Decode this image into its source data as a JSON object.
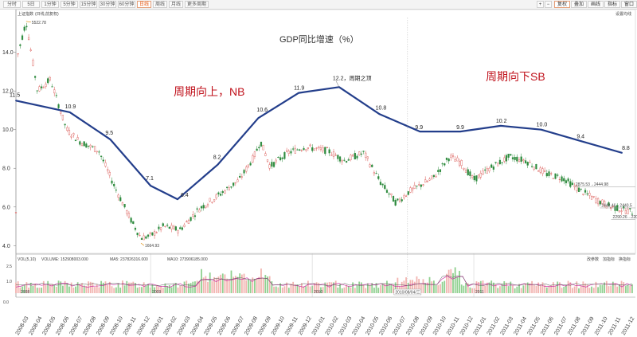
{
  "toolbar": {
    "left_buttons": [
      "分时",
      "5日",
      "1分钟",
      "5分钟",
      "15分钟",
      "30分钟",
      "60分钟",
      "日线",
      "周线",
      "月线",
      "更多周期"
    ],
    "active": "日线",
    "right_buttons": [
      "复权",
      "叠加",
      "画线",
      "指标",
      "窗口"
    ]
  },
  "header": {
    "index_name": "上证指数",
    "index_sub": "(日线,前复权)",
    "settings_label": "设置均线"
  },
  "chart_data": {
    "type": "line",
    "title": "GDP同比增速（%）",
    "price_axis_ticks": [
      "14.0",
      "12.0",
      "10.0",
      "8.0",
      "6.0",
      "4.0"
    ],
    "gdp_series": {
      "x": [
        "2008-03",
        "2008-07",
        "2008-10",
        "2009-01",
        "2009-03",
        "2009-06",
        "2009-09",
        "2009-12",
        "2010-03",
        "2010-06",
        "2010-09",
        "2010-12",
        "2011-03",
        "2011-06",
        "2011-09",
        "2011-12"
      ],
      "values": [
        11.5,
        10.9,
        9.5,
        7.1,
        6.4,
        8.2,
        10.6,
        11.9,
        12.2,
        10.8,
        9.9,
        9.9,
        10.2,
        10.0,
        9.4,
        8.8
      ]
    },
    "gdp_labels": [
      "11.5",
      "10.9",
      "9.5",
      "7.1",
      "6.4",
      "8.2",
      "10.6",
      "11.9",
      "12.2，周期之顶",
      "10.8",
      "9.9",
      "9.9",
      "10.2",
      "10.0",
      "9.4",
      "8.8"
    ],
    "price_extremes": {
      "high": "5522.78",
      "low": "1664.93"
    },
    "price_right_labels": [
      "2875.53→2444.98",
      "2448.46→2440.5",
      "2290.26→2206.1"
    ],
    "annotations": [
      "周期向上，NB",
      "周期向下SB"
    ],
    "year_markers": [
      "2008",
      "2009",
      "2010",
      "2011"
    ],
    "crosshair_date": "2010/08/04/三",
    "volume": {
      "header": [
        "VOL(5,10)",
        "VOLUME: 152908003.000",
        "MA5: 237826316.000",
        "MA10: 273906185.000"
      ],
      "right_buttons": [
        "改参数",
        "加指标",
        "换指标"
      ],
      "ticks": [
        "2.5",
        "1.0"
      ]
    },
    "x_axis_bottom_tick": "0.0",
    "x_dates": [
      "2008-03",
      "2008-04",
      "2008-05",
      "2008-06",
      "2008-07",
      "2008-08",
      "2008-09",
      "2008-10",
      "2008-11",
      "2008-12",
      "2009-01",
      "2009-02",
      "2009-03",
      "2009-04",
      "2009-05",
      "2009-06",
      "2009-07",
      "2009-08",
      "2009-09",
      "2009-10",
      "2009-11",
      "2009-12",
      "2010-01",
      "2010-02",
      "2010-03",
      "2010-04",
      "2010-05",
      "2010-06",
      "2010-07",
      "2010-08",
      "2010-09",
      "2010-10",
      "2010-11",
      "2010-12",
      "2011-01",
      "2011-02",
      "2011-03",
      "2011-04",
      "2011-05",
      "2011-06",
      "2011-07",
      "2011-08",
      "2011-09",
      "2011-10",
      "2011-11",
      "2011-12"
    ]
  }
}
